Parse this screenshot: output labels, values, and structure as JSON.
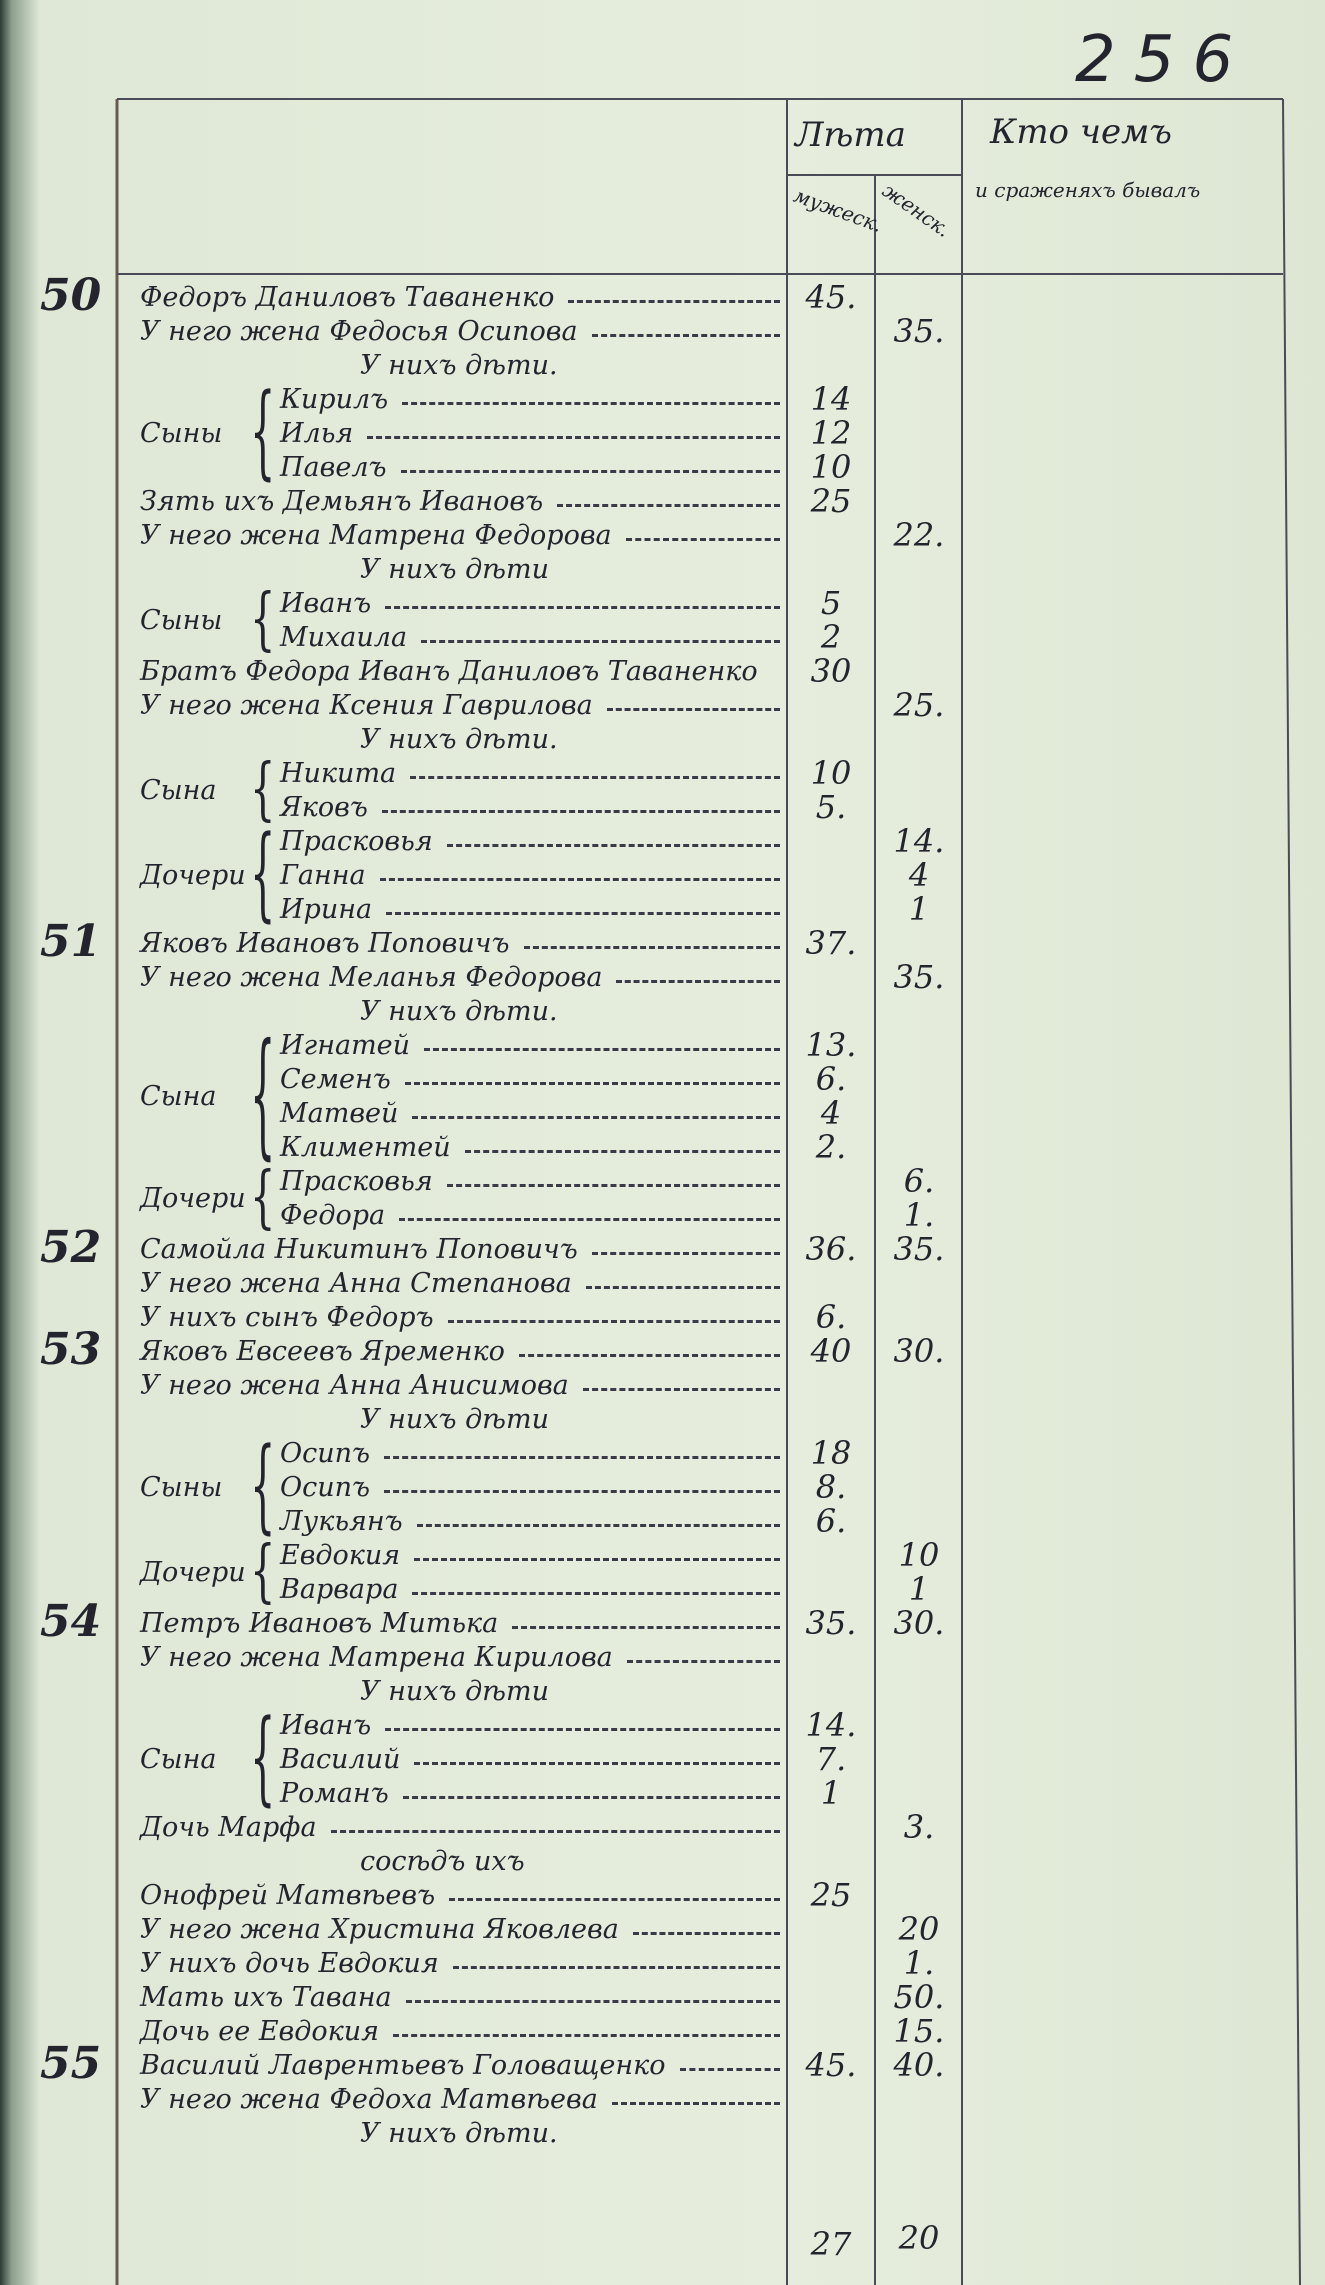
{
  "header": {
    "page_number": "256",
    "age": "Лѣта",
    "male": "мужеск.",
    "female": "женск.",
    "occupation": "Кто чемъ",
    "occupation_sub": "и сраженяхъ бывалъ"
  },
  "entries": [
    {
      "number": "50",
      "text": "Федоръ Даниловъ Таваненко",
      "male": "45."
    },
    {
      "text": "У него жена Федосья Осипова",
      "female": "35."
    },
    {
      "heading": "У нихъ дѣти."
    },
    {
      "relation": "Сыны",
      "members": [
        {
          "text": "Кирилъ",
          "male": "14"
        },
        {
          "text": "Илья",
          "male": "12"
        },
        {
          "text": "Павелъ",
          "male": "10"
        }
      ]
    },
    {
      "text": "Зять ихъ Демьянъ Ивановъ",
      "male": "25"
    },
    {
      "text": "У него жена Матрена Федорова",
      "female": "22."
    },
    {
      "heading": "У нихъ дѣти"
    },
    {
      "relation": "Сыны",
      "members": [
        {
          "text": "Иванъ",
          "male": "5"
        },
        {
          "text": "Михаила",
          "male": "2"
        }
      ]
    },
    {
      "text": "Братъ Федора Иванъ Даниловъ Таваненко",
      "male": "30"
    },
    {
      "text": "У него жена Ксения Гаврилова",
      "female": "25."
    },
    {
      "heading": "У нихъ дѣти."
    },
    {
      "relation": "Сына",
      "members": [
        {
          "text": "Никита",
          "male": "10"
        },
        {
          "text": "Яковъ",
          "male": "5."
        }
      ]
    },
    {
      "relation": "Дочери",
      "members": [
        {
          "text": "Прасковья",
          "female": "14."
        },
        {
          "text": "Ганна",
          "female": "4"
        },
        {
          "text": "Ирина",
          "female": "1"
        }
      ]
    },
    {
      "number": "51",
      "text": "Яковъ Ивановъ Поповичъ",
      "male": "37."
    },
    {
      "text": "У него жена Меланья Федорова",
      "female": "35."
    },
    {
      "heading": "У нихъ дѣти."
    },
    {
      "relation": "Сына",
      "members": [
        {
          "text": "Игнатей",
          "male": "13."
        },
        {
          "text": "Семенъ",
          "male": "6."
        },
        {
          "text": "Матвей",
          "male": "4"
        },
        {
          "text": "Климентей",
          "male": "2."
        }
      ]
    },
    {
      "relation": "Дочери",
      "members": [
        {
          "text": "Прасковья",
          "female": "6."
        },
        {
          "text": "Федора",
          "female": "1."
        }
      ]
    },
    {
      "number": "52",
      "text": "Самойла Никитинъ Поповичъ",
      "male": "36.",
      "female": "35."
    },
    {
      "text": "У него жена Анна Степанова"
    },
    {
      "text": "У нихъ сынъ Федоръ",
      "male": "6."
    },
    {
      "number": "53",
      "text": "Яковъ Евсеевъ Яременко",
      "male": "40",
      "female": "30."
    },
    {
      "text": "У него жена Анна Анисимова"
    },
    {
      "heading": "У нихъ дѣти"
    },
    {
      "relation": "Сыны",
      "members": [
        {
          "text": "Осипъ",
          "male": "18"
        },
        {
          "text": "Осипъ",
          "male": "8."
        },
        {
          "text": "Лукьянъ",
          "male": "6."
        }
      ]
    },
    {
      "relation": "Дочери",
      "members": [
        {
          "text": "Евдокия",
          "female": "10"
        },
        {
          "text": "Варвара",
          "female": "1"
        }
      ]
    },
    {
      "number": "54",
      "text": "Петръ Ивановъ Митька",
      "male": "35.",
      "female": "30."
    },
    {
      "text": "У него жена Матрена Кирилова"
    },
    {
      "heading": "У нихъ дѣти"
    },
    {
      "relation": "Сына",
      "members": [
        {
          "text": "Иванъ",
          "male": "14."
        },
        {
          "text": "Василий",
          "male": "7."
        },
        {
          "text": "Романъ",
          "male": "1"
        }
      ]
    },
    {
      "text": "Дочь Марфа",
      "female": "3."
    },
    {
      "heading": "сосѣдъ ихъ"
    },
    {
      "text": "Онофрей Матвѣевъ",
      "male": "25"
    },
    {
      "text": "У него жена Христина Яковлева",
      "female": "20"
    },
    {
      "text": "У нихъ дочь Евдокия",
      "female": "1."
    },
    {
      "text": "Мать ихъ Тавана",
      "female": "50."
    },
    {
      "text": "Дочь ее Евдокия",
      "female": "15."
    },
    {
      "number": "55",
      "text": "Василий Лаврентьевъ Головащенко",
      "male": "45.",
      "female": "40."
    },
    {
      "text": "У него жена Федоха Матвѣева"
    },
    {
      "heading": "У нихъ дѣти."
    }
  ],
  "totals": {
    "male": "27",
    "female": "20"
  }
}
